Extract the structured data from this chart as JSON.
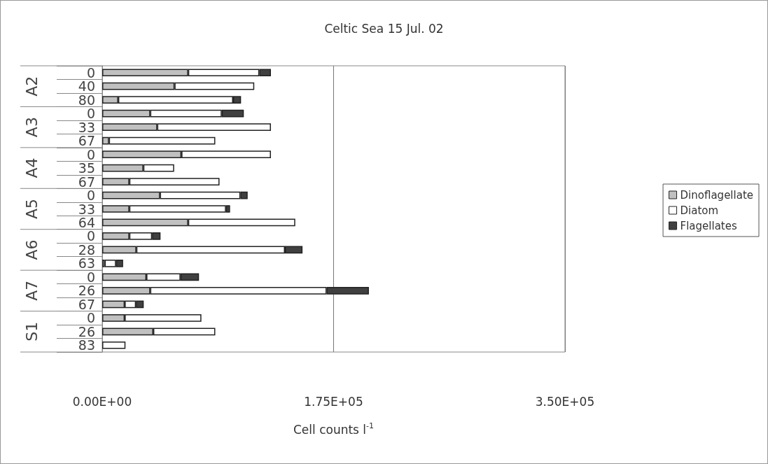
{
  "chart_data": {
    "type": "bar",
    "orientation": "horizontal",
    "stacked": true,
    "title": "Celtic Sea 15 Jul. 02",
    "xlabel": "Cell counts l$^{-1}$",
    "categories": [
      "0",
      "40",
      "80",
      "0",
      "33",
      "67",
      "0",
      "35",
      "67",
      "0",
      "33",
      "64",
      "0",
      "28",
      "63",
      "0",
      "26",
      "67",
      "0",
      "26",
      "83"
    ],
    "annotations": [
      "A2",
      "A3",
      "A4",
      "A5",
      "A6",
      "A7",
      "S1"
    ],
    "series": [
      {
        "name": "Dinoflagellate",
        "color": "#c0c0c0",
        "values": [
          65000,
          54700,
          12100,
          36300,
          41600,
          5100,
          59900,
          31100,
          20500,
          43700,
          20500,
          65000,
          20500,
          25800,
          1900,
          33400,
          36300,
          17000,
          17000,
          38600,
          0
        ]
      },
      {
        "name": "Diatom",
        "color": "#ffffff",
        "values": [
          53800,
          60300,
          86900,
          54100,
          86000,
          80400,
          67700,
          23300,
          68200,
          60800,
          73100,
          81000,
          17200,
          112400,
          8500,
          25800,
          133400,
          8500,
          58000,
          46900,
          17600
        ]
      },
      {
        "name": "Flagellates",
        "color": "#404040",
        "values": [
          8800,
          0,
          6000,
          16700,
          0,
          0,
          0,
          0,
          0,
          5500,
          3100,
          0,
          6400,
          13300,
          5400,
          14000,
          32000,
          5900,
          0,
          0,
          0
        ]
      }
    ],
    "xlim": [
      0,
      350000
    ],
    "xticks": [
      {
        "value": 0,
        "label": "0.00E+00"
      },
      {
        "value": 175000,
        "label": "1.75E+05"
      },
      {
        "value": 350000,
        "label": "3.50E+05"
      }
    ],
    "grid": "x",
    "legend": "right"
  }
}
